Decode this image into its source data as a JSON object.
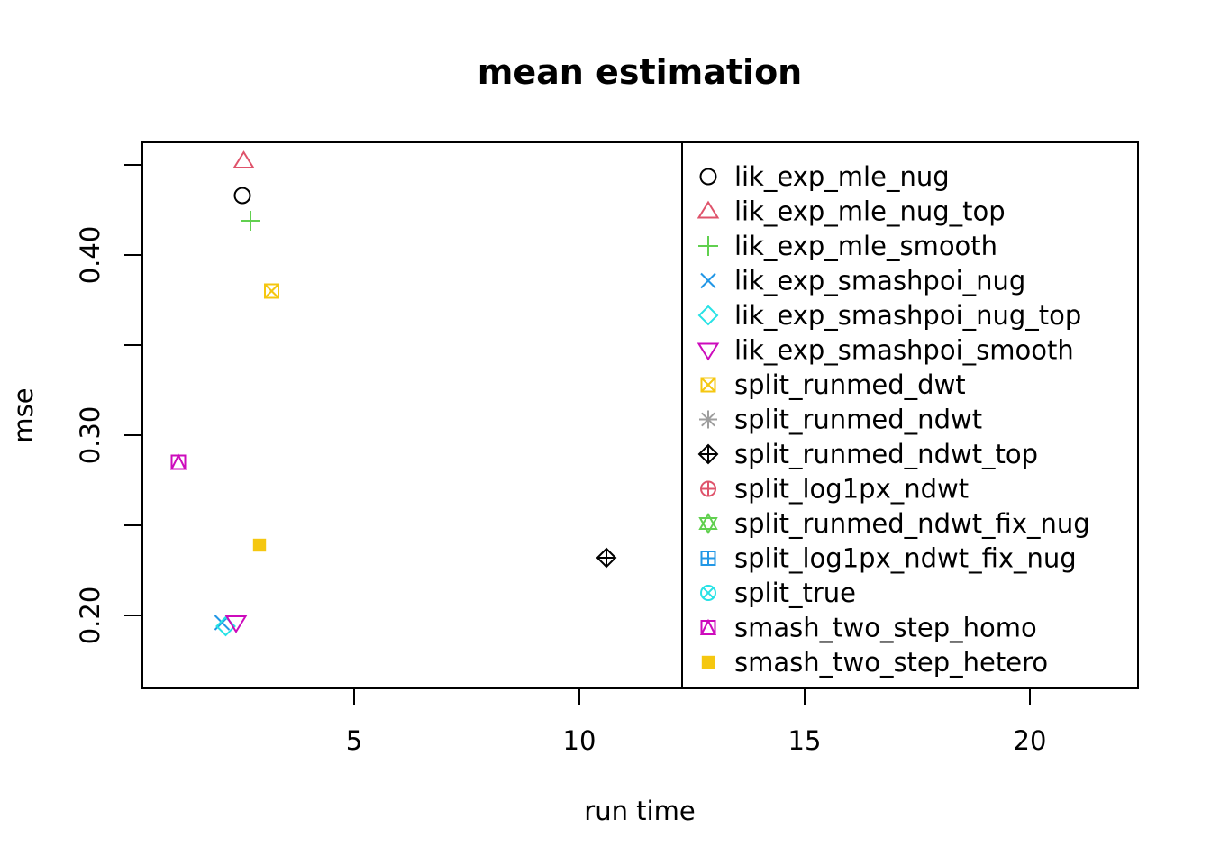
{
  "chart_data": {
    "type": "scatter",
    "title": "mean estimation",
    "xlabel": "run time",
    "ylabel": "mse",
    "xlim": [
      0.3,
      22.4
    ],
    "ylim": [
      0.1595,
      0.4625
    ],
    "x_ticks": [
      5,
      10,
      15,
      20
    ],
    "x_tick_labels": [
      "5",
      "10",
      "15",
      "20"
    ],
    "y_ticks": [
      0.2,
      0.25,
      0.3,
      0.35,
      0.4,
      0.45
    ],
    "y_tick_labels": [
      "0.20",
      "",
      "0.30",
      "",
      "0.40",
      ""
    ],
    "legend_position": "top-right",
    "series": [
      {
        "name": "lik_exp_mle_nug",
        "symbol": "circle",
        "color": "#000000",
        "x": 2.52,
        "y": 0.433
      },
      {
        "name": "lik_exp_mle_nug_top",
        "symbol": "triangle-up",
        "color": "#DF536B",
        "x": 2.55,
        "y": 0.452
      },
      {
        "name": "lik_exp_mle_smooth",
        "symbol": "plus",
        "color": "#61D04F",
        "x": 2.7,
        "y": 0.419
      },
      {
        "name": "lik_exp_smashpoi_nug",
        "symbol": "cross",
        "color": "#2297E6",
        "x": 2.07,
        "y": 0.196
      },
      {
        "name": "lik_exp_smashpoi_nug_top",
        "symbol": "diamond",
        "color": "#28E2E5",
        "x": 2.15,
        "y": 0.194
      },
      {
        "name": "lik_exp_smashpoi_smooth",
        "symbol": "triangle-down",
        "color": "#CD0BBC",
        "x": 2.38,
        "y": 0.196
      },
      {
        "name": "split_runmed_dwt",
        "symbol": "square-x",
        "color": "#F5C710",
        "x": 3.17,
        "y": 0.38
      },
      {
        "name": "split_runmed_ndwt",
        "symbol": "asterisk",
        "color": "#9E9E9E",
        "x": null,
        "y": null
      },
      {
        "name": "split_runmed_ndwt_top",
        "symbol": "diamond-plus",
        "color": "#000000",
        "x": 10.6,
        "y": 0.232
      },
      {
        "name": "split_log1px_ndwt",
        "symbol": "circle-plus",
        "color": "#DF536B",
        "x": null,
        "y": null
      },
      {
        "name": "split_runmed_ndwt_fix_nug",
        "symbol": "star-of-david",
        "color": "#61D04F",
        "x": null,
        "y": null
      },
      {
        "name": "split_log1px_ndwt_fix_nug",
        "symbol": "square-plus",
        "color": "#2297E6",
        "x": null,
        "y": null
      },
      {
        "name": "split_true",
        "symbol": "circle-x",
        "color": "#28E2E5",
        "x": null,
        "y": null
      },
      {
        "name": "smash_two_step_homo",
        "symbol": "square-triangle",
        "color": "#CD0BBC",
        "x": 1.1,
        "y": 0.285
      },
      {
        "name": "smash_two_step_hetero",
        "symbol": "filled-square",
        "color": "#F5C710",
        "x": 2.9,
        "y": 0.239
      }
    ]
  }
}
